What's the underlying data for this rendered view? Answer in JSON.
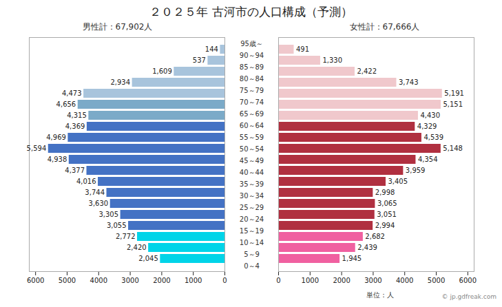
{
  "chart_data": {
    "type": "pyramid",
    "title": "２０２５年 古河市の人口構成（予測）",
    "orientation": "horizontal",
    "categories": [
      "0～4",
      "5～9",
      "10～14",
      "15～19",
      "20～24",
      "25～29",
      "30～34",
      "35～39",
      "40～44",
      "45～49",
      "50～54",
      "55～59",
      "60～64",
      "65～69",
      "70～74",
      "75～79",
      "80～84",
      "85～89",
      "90～94",
      "95歳～"
    ],
    "series": [
      {
        "name": "男性計：67,902人",
        "values": [
          2045,
          2420,
          2772,
          3055,
          3305,
          3630,
          3744,
          4016,
          4377,
          4938,
          5594,
          4969,
          4369,
          4315,
          4656,
          4473,
          2934,
          1609,
          537,
          144
        ],
        "value_labels": [
          "2,045",
          "2,420",
          "2,772",
          "3,055",
          "3,305",
          "3,630",
          "3,744",
          "4,016",
          "4,377",
          "4,938",
          "5,594",
          "4,969",
          "4,369",
          "4,315",
          "4,656",
          "4,473",
          "2,934",
          "1,609",
          "537",
          "144"
        ],
        "colors": [
          "#00d4e8",
          "#00d4e8",
          "#00d4e8",
          "#4472c4",
          "#4472c4",
          "#4472c4",
          "#4472c4",
          "#4472c4",
          "#4472c4",
          "#4472c4",
          "#4472c4",
          "#4472c4",
          "#4472c4",
          "#7baac8",
          "#7baac8",
          "#a8c4dc",
          "#a8c4dc",
          "#a8c4dc",
          "#a8c4dc",
          "#a8c4dc"
        ]
      },
      {
        "name": "女性計：67,666人",
        "values": [
          1945,
          2439,
          2682,
          2994,
          3051,
          3065,
          2998,
          3405,
          3959,
          4354,
          5148,
          4539,
          4329,
          4430,
          5151,
          5191,
          3743,
          2422,
          1330,
          491
        ],
        "value_labels": [
          "1,945",
          "2,439",
          "2,682",
          "2,994",
          "3,051",
          "3,065",
          "2,998",
          "3,405",
          "3,959",
          "4,354",
          "5,148",
          "4,539",
          "4,329",
          "4,430",
          "5,151",
          "5,191",
          "3,743",
          "2,422",
          "1,330",
          "491"
        ],
        "colors": [
          "#f060a0",
          "#f060a0",
          "#f060a0",
          "#b03040",
          "#b03040",
          "#b03040",
          "#b03040",
          "#b03040",
          "#b03040",
          "#b03040",
          "#b03040",
          "#b03040",
          "#b03040",
          "#f0c8cc",
          "#f0c8cc",
          "#f0c8cc",
          "#f0c8cc",
          "#f0c8cc",
          "#f0c8cc",
          "#f0c8cc"
        ]
      }
    ],
    "xlim": [
      0,
      6200
    ],
    "xticks": [
      0,
      1000,
      2000,
      3000,
      4000,
      5000,
      6000
    ],
    "data_labels": true,
    "grid": false,
    "annotations": [
      {
        "text": "単位：人"
      },
      {
        "text": "© jp.gdfreak.com"
      }
    ]
  }
}
